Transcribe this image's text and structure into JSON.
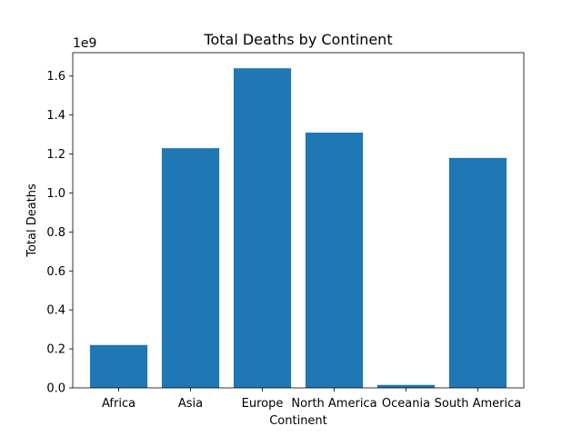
{
  "chart_data": {
    "type": "bar",
    "title": "Total Deaths by Continent",
    "xlabel": "Continent",
    "ylabel": "Total Deaths",
    "offset_label": "1e9",
    "categories": [
      "Africa",
      "Asia",
      "Europe",
      "North America",
      "Oceania",
      "South America"
    ],
    "values": [
      0.22,
      1.23,
      1.64,
      1.31,
      0.015,
      1.18
    ],
    "ylim": [
      0,
      1.72
    ],
    "yticks": [
      0.0,
      0.2,
      0.4,
      0.6,
      0.8,
      1.0,
      1.2,
      1.4,
      1.6
    ],
    "ytick_labels": [
      "0.0",
      "0.2",
      "0.4",
      "0.6",
      "0.8",
      "1.0",
      "1.2",
      "1.4",
      "1.6"
    ],
    "bar_color": "#1f77b4",
    "grid": false,
    "legend": "none"
  }
}
